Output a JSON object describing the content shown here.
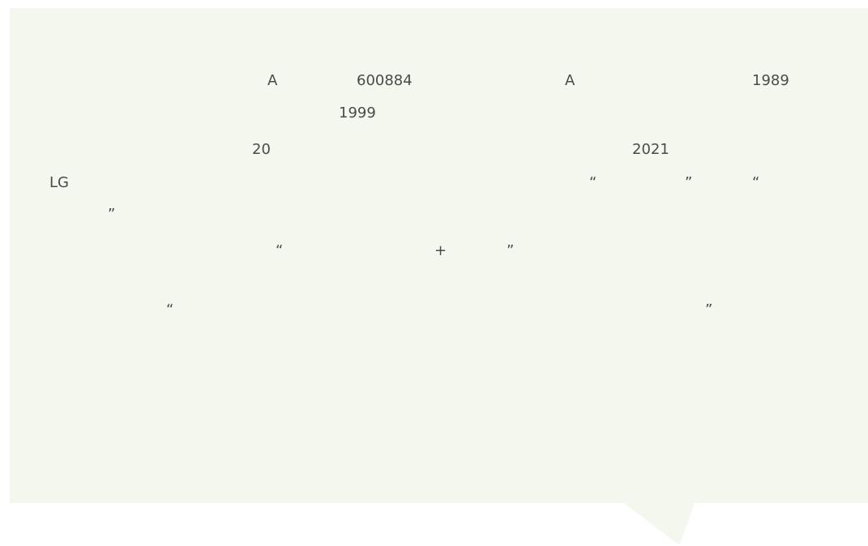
{
  "paragraph": {
    "fragments": [
      "A",
      "600884",
      "A",
      "1989",
      "1999",
      "20",
      "2021",
      "LG",
      "“",
      "”",
      "“",
      "”",
      "“",
      "+",
      "”",
      "“",
      "”"
    ]
  }
}
